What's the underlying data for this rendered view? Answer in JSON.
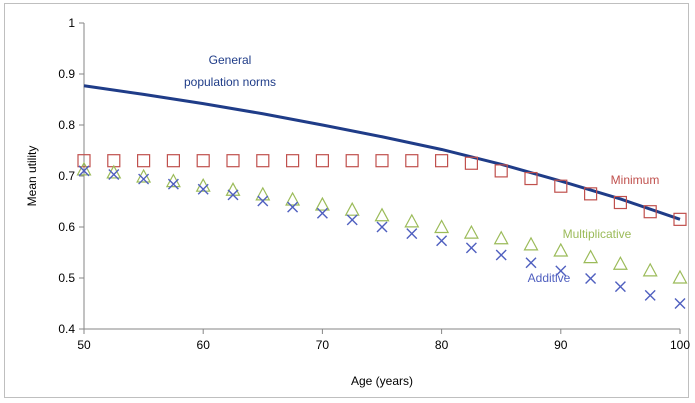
{
  "chart_data": {
    "type": "line",
    "xlabel": "Age (years)",
    "ylabel": "Mean utility",
    "xlim": [
      50,
      100
    ],
    "ylim": [
      0.4,
      1
    ],
    "x_ticks": [
      "50",
      "60",
      "70",
      "80",
      "90",
      "100"
    ],
    "y_ticks": [
      "0.4",
      "0.5",
      "0.6",
      "0.7",
      "0.8",
      "0.9",
      "1"
    ],
    "grid": false,
    "legend": "none",
    "x": [
      50,
      52.5,
      55,
      57.5,
      60,
      62.5,
      65,
      67.5,
      70,
      72.5,
      75,
      77.5,
      80,
      82.5,
      85,
      87.5,
      90,
      92.5,
      95,
      97.5,
      100
    ],
    "series": [
      {
        "name": "General population norms",
        "style": "line",
        "color": "#1f3c88",
        "x": [
          50,
          55,
          60,
          65,
          70,
          75,
          80,
          85,
          90,
          95,
          100
        ],
        "values": [
          0.877,
          0.86,
          0.842,
          0.822,
          0.8,
          0.777,
          0.752,
          0.723,
          0.69,
          0.655,
          0.615
        ]
      },
      {
        "name": "Minimum",
        "style": "square",
        "color": "#c0504d",
        "values": [
          0.73,
          0.73,
          0.73,
          0.73,
          0.73,
          0.73,
          0.73,
          0.73,
          0.73,
          0.73,
          0.73,
          0.73,
          0.73,
          0.725,
          0.71,
          0.695,
          0.68,
          0.665,
          0.648,
          0.63,
          0.615
        ]
      },
      {
        "name": "Multiplicative",
        "style": "triangle",
        "color": "#9bbb59",
        "values": [
          0.712,
          0.706,
          0.698,
          0.689,
          0.68,
          0.672,
          0.663,
          0.653,
          0.643,
          0.633,
          0.622,
          0.61,
          0.599,
          0.588,
          0.577,
          0.565,
          0.553,
          0.54,
          0.527,
          0.514,
          0.5
        ]
      },
      {
        "name": "Additive",
        "style": "cross",
        "color": "#4f5fbf",
        "values": [
          0.71,
          0.703,
          0.694,
          0.684,
          0.674,
          0.663,
          0.651,
          0.639,
          0.627,
          0.614,
          0.6,
          0.587,
          0.573,
          0.559,
          0.545,
          0.53,
          0.514,
          0.499,
          0.483,
          0.466,
          0.45
        ]
      }
    ],
    "annotations": [
      {
        "text_lines": [
          "General",
          "population norms"
        ],
        "color": "#1f3c88",
        "series": "General population norms"
      },
      {
        "text_lines": [
          "Minimum"
        ],
        "color": "#c0504d",
        "series": "Minimum"
      },
      {
        "text_lines": [
          "Multiplicative"
        ],
        "color": "#9bbb59",
        "series": "Multiplicative"
      },
      {
        "text_lines": [
          "Additive"
        ],
        "color": "#4f5fbf",
        "series": "Additive"
      }
    ]
  }
}
